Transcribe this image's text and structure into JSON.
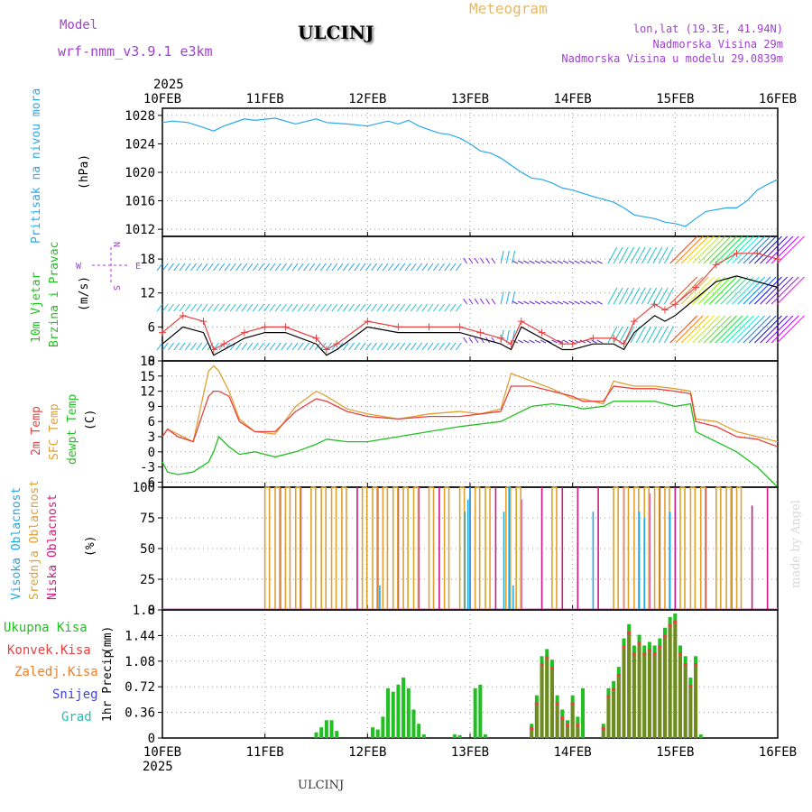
{
  "header": {
    "model_label": "Model",
    "model_name": "wrf-nmm_v3.9.1 e3km",
    "station": "ULCINJ",
    "meteogram": "Meteogram",
    "lonlat": "lon,lat (19.3E, 41.94N)",
    "elevation": "Nadmorska Visina 29m",
    "model_elevation": "Nadmorska Visina u modelu 29.0839m",
    "year_top": "2025",
    "year_bottom": "2025",
    "footer_station": "ULCINJ",
    "watermark": "made by Angel"
  },
  "colors": {
    "pressure": "#2aa8e8",
    "wind_label": "#20c020",
    "temp2m": "#e84040",
    "sfc": "#e0a030",
    "dew": "#20c020",
    "high_cloud": "#20a8e0",
    "mid_cloud": "#e0a030",
    "low_cloud": "#d01880",
    "total_precip": "#20c020",
    "conv_precip": "#e84040",
    "snow": "#4040e0",
    "grad": "#20c0b0",
    "compass": "#a040d0"
  },
  "chart_data": [
    {
      "type": "line",
      "panel": "pressure",
      "ylabel": "Pritisak na nivou mora",
      "units": "(hPa)",
      "ylim": [
        1011,
        1029
      ],
      "yticks": [
        1012,
        1016,
        1020,
        1024,
        1028
      ],
      "x_days": [
        "10FEB",
        "11FEB",
        "12FEB",
        "13FEB",
        "14FEB",
        "15FEB",
        "16FEB"
      ],
      "x": [
        0,
        0.1,
        0.25,
        0.4,
        0.5,
        0.6,
        0.8,
        0.9,
        1.1,
        1.3,
        1.5,
        1.6,
        1.8,
        2.0,
        2.2,
        2.3,
        2.4,
        2.5,
        2.6,
        2.7,
        2.8,
        2.9,
        3.0,
        3.1,
        3.2,
        3.3,
        3.4,
        3.5,
        3.6,
        3.7,
        3.8,
        3.9,
        4.0,
        4.2,
        4.4,
        4.5,
        4.6,
        4.8,
        4.9,
        5.0,
        5.1,
        5.2,
        5.3,
        5.5,
        5.6,
        5.7,
        5.8,
        5.9,
        6.0
      ],
      "values": [
        1027,
        1027.2,
        1027.0,
        1026.3,
        1025.8,
        1026.5,
        1027.5,
        1027.3,
        1027.6,
        1026.8,
        1027.5,
        1027.0,
        1026.8,
        1026.5,
        1027.2,
        1026.8,
        1027.3,
        1026.5,
        1026.0,
        1025.5,
        1025.3,
        1024.8,
        1024.0,
        1023.0,
        1022.7,
        1022.0,
        1021.0,
        1020.0,
        1019.2,
        1019.0,
        1018.5,
        1017.8,
        1017.5,
        1016.6,
        1015.8,
        1015.0,
        1014.0,
        1013.5,
        1013.0,
        1012.8,
        1012.4,
        1013.5,
        1014.5,
        1015.0,
        1015.0,
        1016.0,
        1017.5,
        1018.3,
        1019.0
      ]
    },
    {
      "type": "line",
      "panel": "wind",
      "ylabel": "10m Vjetar",
      "ylabel2": "Brzina i Pravac",
      "units": "(m/s)",
      "ylim": [
        0,
        22
      ],
      "yticks": [
        0,
        6,
        12,
        18
      ],
      "compass": [
        "W",
        "E",
        "N",
        "S"
      ],
      "x": [
        0,
        0.2,
        0.4,
        0.5,
        0.6,
        0.8,
        1.0,
        1.2,
        1.5,
        1.6,
        1.7,
        2.0,
        2.3,
        2.6,
        2.9,
        3.1,
        3.3,
        3.4,
        3.5,
        3.7,
        3.9,
        4.0,
        4.2,
        4.4,
        4.5,
        4.6,
        4.8,
        4.9,
        5.0,
        5.2,
        5.4,
        5.6,
        5.8,
        6.0
      ],
      "values": [
        3,
        6,
        5,
        1,
        2,
        4,
        5,
        5,
        3,
        1,
        2,
        6,
        5,
        5,
        5,
        4,
        3,
        2,
        6,
        4,
        2,
        2,
        3,
        3,
        2,
        5,
        8,
        7,
        8,
        11,
        14,
        15,
        14,
        13
      ],
      "series": [
        {
          "name": "Wind speed",
          "values": [
            3,
            6,
            5,
            1,
            2,
            4,
            5,
            5,
            3,
            1,
            2,
            6,
            5,
            5,
            5,
            4,
            3,
            2,
            6,
            4,
            2,
            2,
            3,
            3,
            2,
            5,
            8,
            7,
            8,
            11,
            14,
            15,
            14,
            13
          ]
        },
        {
          "name": "Gust",
          "values": [
            5,
            8,
            7,
            2,
            3,
            5,
            6,
            6,
            4,
            2,
            3,
            7,
            6,
            6,
            6,
            5,
            4,
            3,
            7,
            5,
            3,
            3,
            4,
            4,
            3,
            7,
            10,
            9,
            10,
            13,
            17,
            19,
            19,
            18
          ]
        }
      ]
    },
    {
      "type": "line",
      "panel": "temperature",
      "ylabels": [
        "2m Temp",
        "SFC Temp",
        "dewpt Temp"
      ],
      "units": "(C)",
      "ylim": [
        -7,
        18
      ],
      "yticks": [
        -6,
        -3,
        0,
        3,
        6,
        9,
        12,
        15,
        18
      ],
      "x": [
        0,
        0.05,
        0.15,
        0.3,
        0.45,
        0.5,
        0.55,
        0.65,
        0.75,
        0.9,
        1.1,
        1.3,
        1.5,
        1.6,
        1.8,
        2.0,
        2.3,
        2.6,
        2.9,
        3.1,
        3.3,
        3.4,
        3.6,
        3.8,
        4.0,
        4.1,
        4.3,
        4.4,
        4.6,
        4.8,
        5.0,
        5.15,
        5.2,
        5.4,
        5.6,
        5.8,
        6.0
      ],
      "series": [
        {
          "name": "2m Temp",
          "values": [
            3,
            4.5,
            3,
            2,
            11,
            12,
            12,
            11,
            6,
            4,
            4,
            8,
            10.5,
            10,
            8,
            7,
            6.5,
            7,
            7,
            7.5,
            8,
            13,
            13,
            12,
            11,
            10,
            10,
            13,
            12.5,
            12.5,
            12,
            11.5,
            6,
            5,
            3,
            2.5,
            1
          ]
        },
        {
          "name": "SFC Temp",
          "values": [
            3,
            4.5,
            3.5,
            2,
            16,
            17,
            16,
            12,
            6.5,
            4,
            3.5,
            9,
            12,
            11,
            8.5,
            7.5,
            6.5,
            7.5,
            8,
            7.5,
            8.5,
            15.5,
            14,
            12.5,
            10.5,
            10.5,
            9.5,
            14,
            13,
            13,
            12.5,
            12,
            6.5,
            6,
            4,
            3,
            2
          ]
        },
        {
          "name": "dewpt Temp",
          "values": [
            -2,
            -4,
            -4.5,
            -4,
            -2,
            0,
            3,
            1,
            -0.5,
            0,
            -1,
            0,
            1.5,
            2.5,
            2,
            2,
            3,
            4,
            5,
            5.5,
            6,
            7,
            9,
            9.5,
            9,
            8.5,
            9,
            10,
            10,
            10,
            9,
            9.5,
            4,
            2,
            0,
            -3,
            -7
          ]
        }
      ]
    },
    {
      "type": "bar",
      "panel": "clouds",
      "ylabels": [
        "Visoka Oblacnost",
        "Srednja Oblacnost",
        "Niska Oblacnost"
      ],
      "units": "(%)",
      "ylim": [
        0,
        100
      ],
      "yticks": [
        0,
        25,
        50,
        75,
        100
      ],
      "series": [
        {
          "name": "Niska",
          "x": [
            1.15,
            1.35,
            1.9,
            2.1,
            2.3,
            2.5,
            2.7,
            3.0,
            3.25,
            3.5,
            3.7,
            3.9,
            4.05,
            4.25,
            4.5,
            4.75,
            4.85,
            5.0,
            5.3,
            5.55,
            5.75,
            5.9
          ],
          "values": [
            100,
            100,
            100,
            100,
            100,
            100,
            100,
            100,
            100,
            90,
            100,
            100,
            100,
            100,
            100,
            95,
            100,
            100,
            100,
            100,
            85,
            100
          ]
        },
        {
          "name": "Srednja",
          "x": [
            1.0,
            1.1,
            1.2,
            1.3,
            1.45,
            1.55,
            1.65,
            1.75,
            1.95,
            2.05,
            2.15,
            2.25,
            2.35,
            2.45,
            2.6,
            2.75,
            2.9,
            3.05,
            3.15,
            3.35,
            3.45,
            3.8,
            4.4,
            4.5,
            4.6,
            4.7,
            4.8,
            4.9,
            5.05,
            5.15,
            5.25,
            5.4,
            5.5,
            5.6
          ],
          "values": [
            100,
            100,
            100,
            100,
            100,
            100,
            100,
            100,
            100,
            100,
            100,
            100,
            100,
            100,
            100,
            100,
            100,
            100,
            100,
            100,
            100,
            100,
            100,
            100,
            100,
            100,
            100,
            100,
            100,
            100,
            100,
            100,
            100,
            100
          ]
        },
        {
          "name": "Visoka",
          "x": [
            2.12,
            2.95,
            2.98,
            3.0,
            3.33,
            3.38,
            3.42,
            4.2,
            4.65,
            4.7,
            4.95
          ],
          "values": [
            20,
            80,
            90,
            100,
            80,
            100,
            20,
            80,
            80,
            75,
            80
          ]
        }
      ]
    },
    {
      "type": "bar",
      "panel": "precip",
      "ylabels": [
        "Ukupna Kisa",
        "Konvek.Kisa",
        "Zaledj.Kisa",
        "Snijeg",
        "Grad"
      ],
      "ylabel": "1hr Precip",
      "units": "(mm)",
      "ylim": [
        0,
        1.8
      ],
      "yticks": [
        0,
        0.36,
        0.72,
        1.08,
        1.44,
        1.8
      ],
      "x": [
        1.5,
        1.55,
        1.6,
        1.65,
        1.7,
        2.05,
        2.1,
        2.15,
        2.2,
        2.25,
        2.3,
        2.35,
        2.4,
        2.45,
        2.5,
        2.55,
        2.85,
        2.9,
        3.05,
        3.1,
        3.15,
        3.6,
        3.65,
        3.7,
        3.75,
        3.8,
        3.85,
        3.9,
        3.95,
        4.0,
        4.05,
        4.1,
        4.3,
        4.35,
        4.4,
        4.45,
        4.5,
        4.55,
        4.6,
        4.65,
        4.7,
        4.75,
        4.8,
        4.85,
        4.9,
        4.95,
        5.0,
        5.05,
        5.1,
        5.15,
        5.2,
        5.25
      ],
      "values": [
        0.08,
        0.15,
        0.25,
        0.25,
        0.1,
        0.15,
        0.12,
        0.3,
        0.7,
        0.65,
        0.75,
        0.85,
        0.7,
        0.4,
        0.2,
        0.05,
        0.05,
        0.04,
        0.7,
        0.75,
        0.05,
        0.2,
        0.6,
        1.15,
        1.25,
        1.1,
        0.6,
        0.4,
        0.25,
        0.6,
        0.3,
        0.7,
        0.2,
        0.7,
        0.8,
        1.0,
        1.4,
        1.6,
        1.3,
        1.45,
        1.3,
        1.35,
        1.3,
        1.4,
        1.55,
        1.7,
        1.75,
        1.3,
        1.15,
        0.85,
        1.15,
        0.05
      ],
      "series": [
        {
          "name": "Ukupna Kisa",
          "values": [
            0.08,
            0.15,
            0.25,
            0.25,
            0.1,
            0.15,
            0.12,
            0.3,
            0.7,
            0.65,
            0.75,
            0.85,
            0.7,
            0.4,
            0.2,
            0.05,
            0.05,
            0.04,
            0.7,
            0.75,
            0.05,
            0.2,
            0.6,
            1.15,
            1.25,
            1.1,
            0.6,
            0.4,
            0.25,
            0.6,
            0.3,
            0.7,
            0.2,
            0.7,
            0.8,
            1.0,
            1.4,
            1.6,
            1.3,
            1.45,
            1.3,
            1.35,
            1.3,
            1.4,
            1.55,
            1.7,
            1.75,
            1.3,
            1.15,
            0.85,
            1.15,
            0.05
          ]
        },
        {
          "name": "Konvek.Kisa",
          "values": [
            0,
            0,
            0,
            0,
            0,
            0,
            0,
            0,
            0,
            0,
            0,
            0,
            0,
            0,
            0,
            0,
            0,
            0,
            0,
            0,
            0,
            0.15,
            0.5,
            1.05,
            1.15,
            1.0,
            0.5,
            0.3,
            0.2,
            0.5,
            0.2,
            0,
            0.15,
            0.6,
            0.7,
            0.9,
            1.3,
            1.5,
            1.2,
            1.35,
            1.2,
            1.25,
            1.2,
            1.3,
            1.45,
            1.6,
            1.65,
            1.2,
            1.05,
            0.75,
            1.05,
            0
          ]
        }
      ]
    }
  ]
}
